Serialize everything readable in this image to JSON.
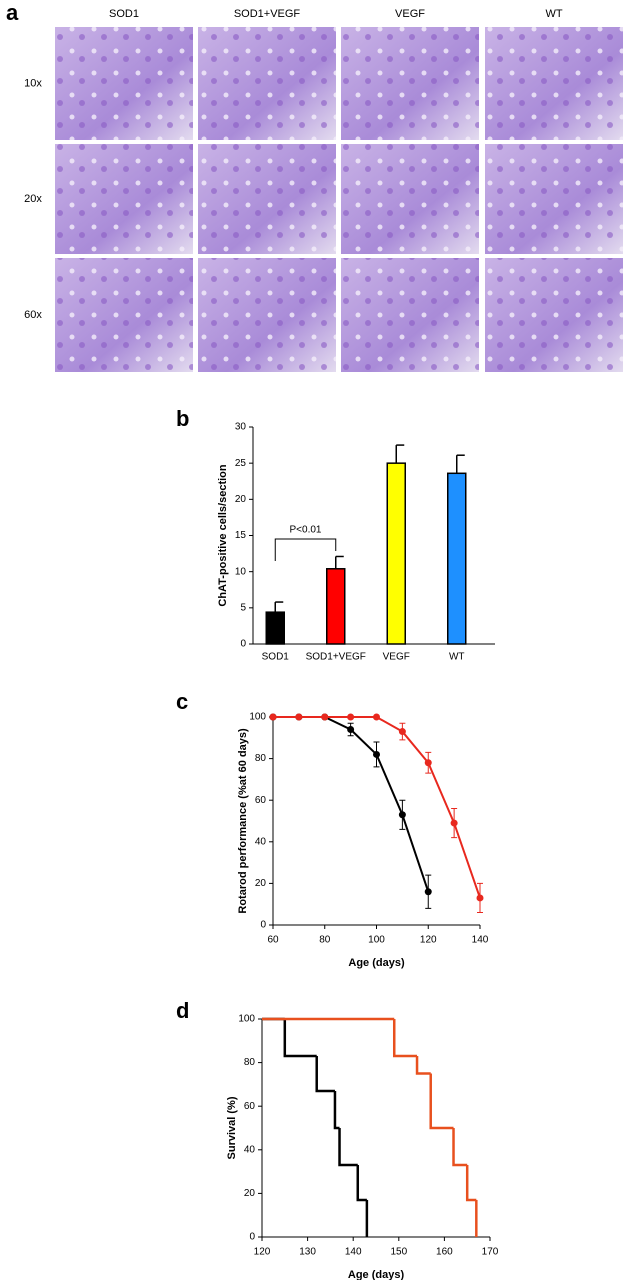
{
  "micrographs": {
    "label": "a",
    "columns": [
      "SOD1",
      "SOD1+VEGF",
      "VEGF",
      "WT"
    ],
    "rows": [
      "10x",
      "20x",
      "60x"
    ]
  },
  "chart_data": [
    {
      "label": "b",
      "type": "bar",
      "ylabel": "ChAT-positive cells/section",
      "categories": [
        "SOD1",
        "SOD1+VEGF",
        "VEGF",
        "WT"
      ],
      "values": [
        4.4,
        10.4,
        25,
        23.6
      ],
      "errors": [
        1.4,
        1.7,
        2.5,
        2.5
      ],
      "colors": [
        "#000000",
        "#ff0000",
        "#ffff00",
        "#1e90ff"
      ],
      "annotation": "P<0.01",
      "ylim": [
        0,
        30
      ],
      "yticks": [
        0,
        5,
        10,
        15,
        20,
        25,
        30
      ]
    },
    {
      "label": "c",
      "type": "line",
      "xlabel": "Age (days)",
      "ylabel": "Rotarod performance (%at 60 days)",
      "series": [
        {
          "color": "#000000",
          "x": [
            60,
            70,
            80,
            90,
            100,
            110,
            120
          ],
          "values": [
            100,
            100,
            100,
            94,
            82,
            53,
            16
          ],
          "errors": [
            null,
            null,
            null,
            3,
            6,
            7,
            8
          ]
        },
        {
          "color": "#e8281e",
          "x": [
            60,
            70,
            80,
            90,
            100,
            110,
            120,
            130,
            140
          ],
          "values": [
            100,
            100,
            100,
            100,
            100,
            93,
            78,
            49,
            13
          ],
          "errors": [
            null,
            null,
            null,
            null,
            null,
            4,
            5,
            7,
            7
          ]
        }
      ],
      "xlim": [
        60,
        140
      ],
      "xticks": [
        60,
        80,
        100,
        120,
        140
      ],
      "ylim": [
        0,
        100
      ],
      "yticks": [
        0,
        20,
        40,
        60,
        80,
        100
      ]
    },
    {
      "label": "d",
      "type": "step",
      "xlabel": "Age (days)",
      "ylabel": "Survival (%)",
      "series": [
        {
          "color": "#000000",
          "x": [
            120,
            125,
            132,
            136,
            137,
            141,
            143
          ],
          "values": [
            100,
            83,
            67,
            50,
            33,
            17,
            0
          ]
        },
        {
          "color": "#e8501e",
          "x": [
            120,
            149,
            154,
            157,
            162,
            165,
            167
          ],
          "values": [
            100,
            83,
            75,
            50,
            33,
            17,
            0
          ]
        }
      ],
      "xlim": [
        120,
        170
      ],
      "xticks": [
        120,
        130,
        140,
        150,
        160,
        170
      ],
      "ylim": [
        0,
        100
      ],
      "yticks": [
        0,
        20,
        40,
        60,
        80,
        100
      ]
    }
  ]
}
